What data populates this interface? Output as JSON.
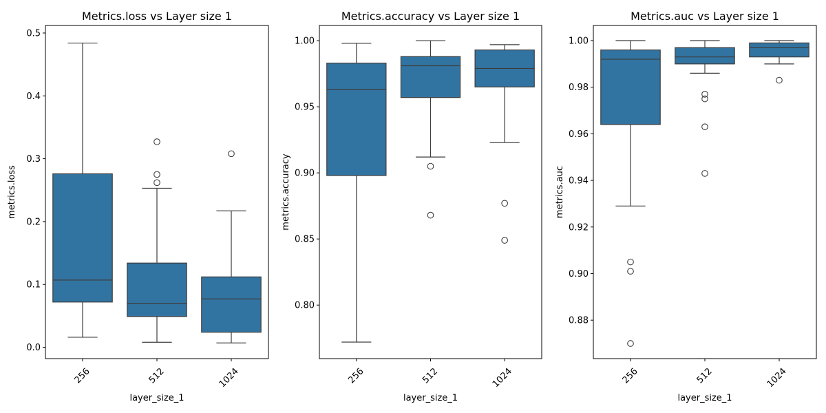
{
  "chart_data": [
    {
      "type": "box",
      "title": "Metrics.loss vs Layer size 1",
      "xlabel": "layer_size_1",
      "ylabel": "metrics.loss",
      "categories": [
        "256",
        "512",
        "1024"
      ],
      "ylim": [
        -0.018,
        0.512
      ],
      "yticks": [
        0.0,
        0.1,
        0.2,
        0.3,
        0.4,
        0.5
      ],
      "ytick_labels": [
        "0.0",
        "0.1",
        "0.2",
        "0.3",
        "0.4",
        "0.5"
      ],
      "boxes": [
        {
          "whislo": 0.016,
          "q1": 0.072,
          "med": 0.107,
          "q3": 0.276,
          "whishi": 0.484,
          "fliers": []
        },
        {
          "whislo": 0.008,
          "q1": 0.049,
          "med": 0.07,
          "q3": 0.134,
          "whishi": 0.253,
          "fliers": [
            0.262,
            0.275,
            0.327
          ]
        },
        {
          "whislo": 0.007,
          "q1": 0.024,
          "med": 0.077,
          "q3": 0.112,
          "whishi": 0.217,
          "fliers": [
            0.308
          ]
        }
      ],
      "color": "#3274a1"
    },
    {
      "type": "box",
      "title": "Metrics.accuracy vs Layer size 1",
      "xlabel": "layer_size_1",
      "ylabel": "metrics.accuracy",
      "categories": [
        "256",
        "512",
        "1024"
      ],
      "ylim": [
        0.7595,
        1.0115
      ],
      "yticks": [
        0.8,
        0.85,
        0.9,
        0.95,
        1.0
      ],
      "ytick_labels": [
        "0.80",
        "0.85",
        "0.90",
        "0.95",
        "1.00"
      ],
      "boxes": [
        {
          "whislo": 0.772,
          "q1": 0.898,
          "med": 0.963,
          "q3": 0.983,
          "whishi": 0.998,
          "fliers": []
        },
        {
          "whislo": 0.912,
          "q1": 0.957,
          "med": 0.981,
          "q3": 0.988,
          "whishi": 1.0,
          "fliers": [
            0.905,
            0.868
          ]
        },
        {
          "whislo": 0.923,
          "q1": 0.965,
          "med": 0.979,
          "q3": 0.993,
          "whishi": 0.997,
          "fliers": [
            0.877,
            0.849
          ]
        }
      ],
      "color": "#3274a1"
    },
    {
      "type": "box",
      "title": "Metrics.auc vs Layer size 1",
      "xlabel": "layer_size_1",
      "ylabel": "metrics.auc",
      "categories": [
        "256",
        "512",
        "1024"
      ],
      "ylim": [
        0.8635,
        1.0065
      ],
      "yticks": [
        0.88,
        0.9,
        0.92,
        0.94,
        0.96,
        0.98,
        1.0
      ],
      "ytick_labels": [
        "0.88",
        "0.90",
        "0.92",
        "0.94",
        "0.96",
        "0.98",
        "1.00"
      ],
      "boxes": [
        {
          "whislo": 0.929,
          "q1": 0.964,
          "med": 0.992,
          "q3": 0.996,
          "whishi": 1.0,
          "fliers": [
            0.905,
            0.901,
            0.87
          ]
        },
        {
          "whislo": 0.986,
          "q1": 0.99,
          "med": 0.993,
          "q3": 0.997,
          "whishi": 1.0,
          "fliers": [
            0.977,
            0.975,
            0.963,
            0.943
          ]
        },
        {
          "whislo": 0.99,
          "q1": 0.993,
          "med": 0.997,
          "q3": 0.999,
          "whishi": 1.0,
          "fliers": [
            0.983
          ]
        }
      ],
      "color": "#3274a1"
    }
  ]
}
